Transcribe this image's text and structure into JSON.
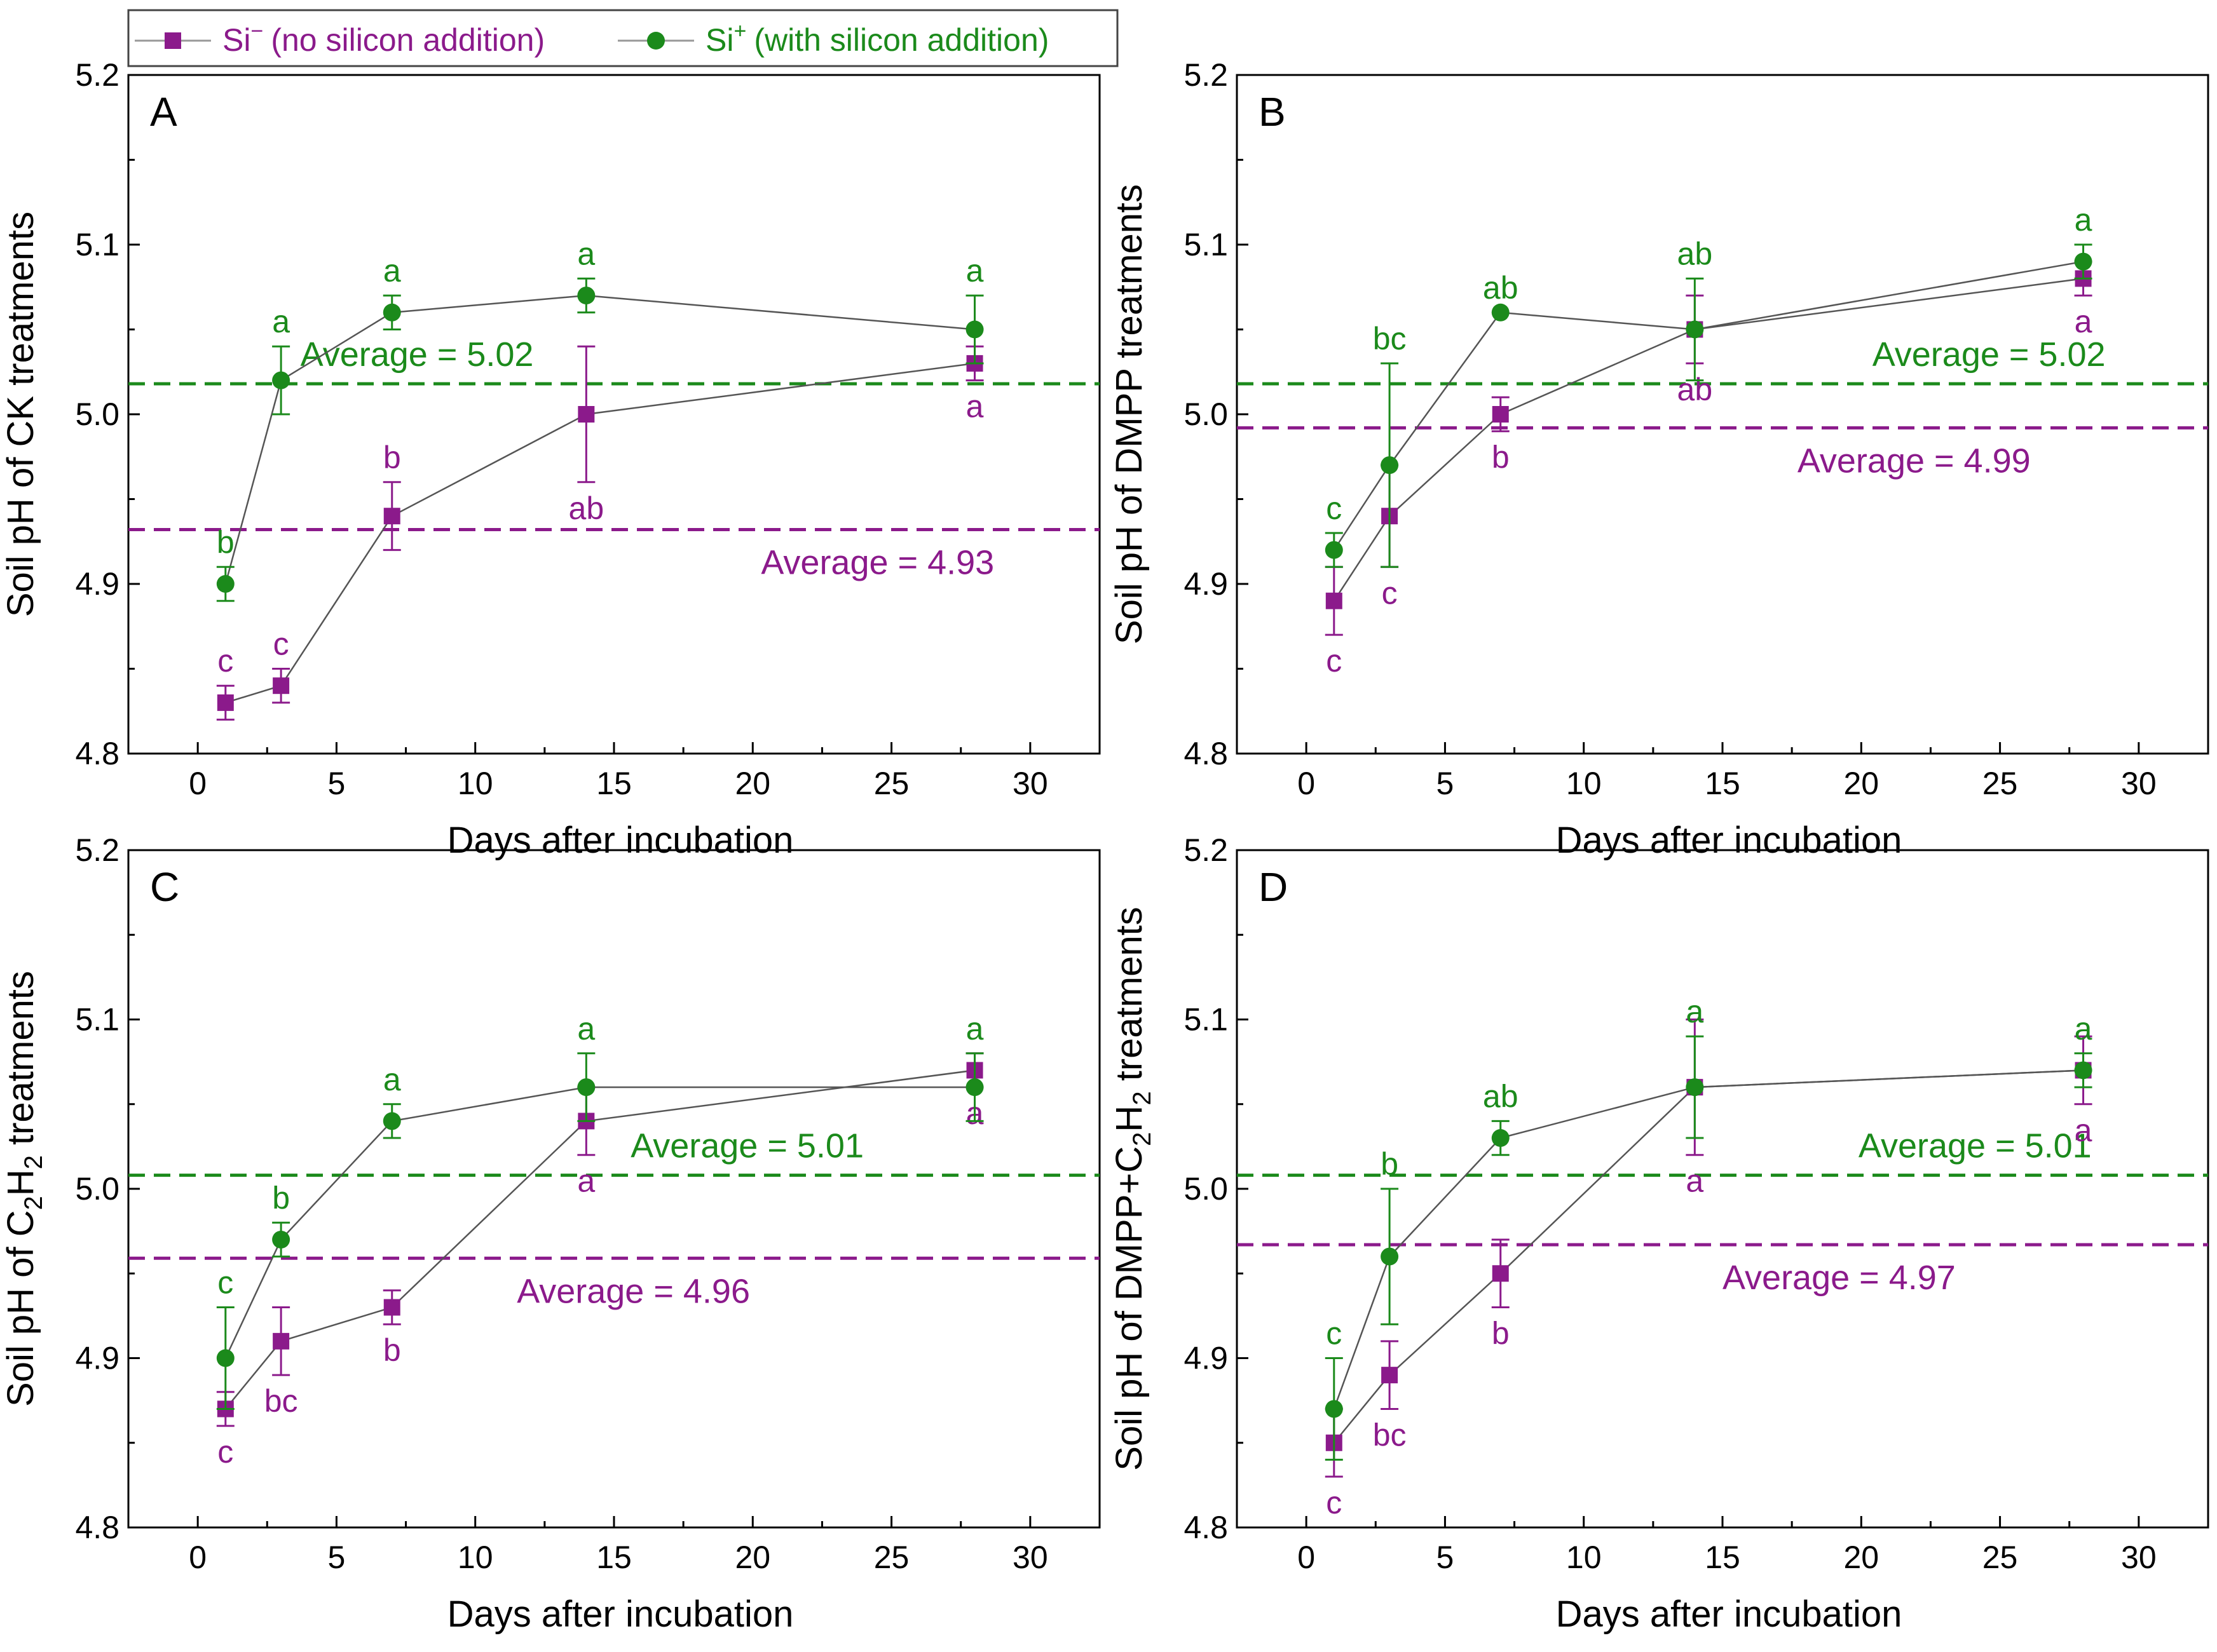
{
  "colors": {
    "si_minus": "#8B1A8B",
    "si_plus": "#1B8A1B",
    "axis": "#000000",
    "connector": "#555555"
  },
  "legend": {
    "si_minus": {
      "sym": "Si",
      "sup": "−",
      "desc": "(no silicon addition)"
    },
    "si_plus": {
      "sym": "Si",
      "sup": "+",
      "desc": "(with silicon addition)"
    }
  },
  "chart_data": [
    {
      "type": "line",
      "panel": "A",
      "ylabel": [
        {
          "t": "Soil pH of CK treatments"
        }
      ],
      "xlabel": "Days after incubation",
      "x": [
        1,
        3,
        7,
        14,
        28
      ],
      "xlim": [
        -2.5,
        32.5
      ],
      "ylim": [
        4.8,
        5.2
      ],
      "xticks": [
        0,
        5,
        10,
        15,
        20,
        25,
        30
      ],
      "yticks": [
        4.8,
        4.9,
        5.0,
        5.1,
        5.2
      ],
      "series": [
        {
          "name": "Si − (no silicon addition)",
          "key": "si_minus",
          "values": [
            4.83,
            4.84,
            4.94,
            5.0,
            5.03
          ],
          "errors": [
            0.01,
            0.01,
            0.02,
            0.04,
            0.01
          ],
          "letters": [
            "c",
            "c",
            "b",
            "ab",
            "a"
          ],
          "letter_pos": [
            "above",
            "above",
            "above",
            "below",
            "below"
          ],
          "average": 4.932,
          "average_label": "Average = 4.93"
        },
        {
          "name": "Si + (with silicon addition)",
          "key": "si_plus",
          "values": [
            4.9,
            5.02,
            5.06,
            5.07,
            5.05
          ],
          "errors": [
            0.01,
            0.02,
            0.01,
            0.01,
            0.02
          ],
          "letters": [
            "b",
            "a",
            "a",
            "a",
            "a"
          ],
          "letter_pos": [
            "above",
            "above",
            "above",
            "above",
            "above"
          ],
          "average": 5.018,
          "average_label": "Average = 5.02"
        }
      ]
    },
    {
      "type": "line",
      "panel": "B",
      "ylabel": [
        {
          "t": "Soil pH of DMPP treatments"
        }
      ],
      "xlabel": "Days after incubation",
      "x": [
        1,
        3,
        7,
        14,
        28
      ],
      "xlim": [
        -2.5,
        32.5
      ],
      "ylim": [
        4.8,
        5.2
      ],
      "xticks": [
        0,
        5,
        10,
        15,
        20,
        25,
        30
      ],
      "yticks": [
        4.8,
        4.9,
        5.0,
        5.1,
        5.2
      ],
      "series": [
        {
          "name": "Si − (no silicon addition)",
          "key": "si_minus",
          "values": [
            4.89,
            4.94,
            5.0,
            5.05,
            5.08
          ],
          "errors": [
            0.02,
            0.03,
            0.01,
            0.02,
            0.01
          ],
          "letters": [
            "c",
            "c",
            "b",
            "ab",
            "a"
          ],
          "letter_pos": [
            "below",
            "below",
            "below",
            "below",
            "below"
          ],
          "average": 4.992,
          "average_label": "Average = 4.99"
        },
        {
          "name": "Si + (with silicon addition)",
          "key": "si_plus",
          "values": [
            4.92,
            4.97,
            5.06,
            5.05,
            5.09
          ],
          "errors": [
            0.01,
            0.06,
            0.0,
            0.03,
            0.01
          ],
          "letters": [
            "c",
            "bc",
            "ab",
            "ab",
            "a"
          ],
          "letter_pos": [
            "above",
            "above",
            "above",
            "above",
            "above"
          ],
          "average": 5.018,
          "average_label": "Average = 5.02"
        }
      ]
    },
    {
      "type": "line",
      "panel": "C",
      "ylabel": [
        {
          "t": "Soil pH of C"
        },
        {
          "t": "2",
          "sub": true
        },
        {
          "t": "H"
        },
        {
          "t": "2",
          "sub": true
        },
        {
          "t": " treatments"
        }
      ],
      "xlabel": "Days after incubation",
      "x": [
        1,
        3,
        7,
        14,
        28
      ],
      "xlim": [
        -2.5,
        32.5
      ],
      "ylim": [
        4.8,
        5.2
      ],
      "xticks": [
        0,
        5,
        10,
        15,
        20,
        25,
        30
      ],
      "yticks": [
        4.8,
        4.9,
        5.0,
        5.1,
        5.2
      ],
      "series": [
        {
          "name": "Si − (no silicon addition)",
          "key": "si_minus",
          "values": [
            4.87,
            4.91,
            4.93,
            5.04,
            5.07
          ],
          "errors": [
            0.01,
            0.02,
            0.01,
            0.02,
            0.01
          ],
          "letters": [
            "c",
            "bc",
            "b",
            "a",
            "a"
          ],
          "letter_pos": [
            "below",
            "below",
            "below",
            "below",
            "below"
          ],
          "average": 4.959,
          "average_label": "Average = 4.96"
        },
        {
          "name": "Si + (with silicon addition)",
          "key": "si_plus",
          "values": [
            4.9,
            4.97,
            5.04,
            5.06,
            5.06
          ],
          "errors": [
            0.03,
            0.01,
            0.01,
            0.02,
            0.02
          ],
          "letters": [
            "c",
            "b",
            "a",
            "a",
            "a"
          ],
          "letter_pos": [
            "above",
            "above",
            "above",
            "above",
            "above"
          ],
          "average": 5.008,
          "average_label": "Average = 5.01"
        }
      ]
    },
    {
      "type": "line",
      "panel": "D",
      "ylabel": [
        {
          "t": "Soil pH of DMPP+C"
        },
        {
          "t": "2",
          "sub": true
        },
        {
          "t": "H"
        },
        {
          "t": "2",
          "sub": true
        },
        {
          "t": " treatments"
        }
      ],
      "xlabel": "Days after incubation",
      "x": [
        1,
        3,
        7,
        14,
        28
      ],
      "xlim": [
        -2.5,
        32.5
      ],
      "ylim": [
        4.8,
        5.2
      ],
      "xticks": [
        0,
        5,
        10,
        15,
        20,
        25,
        30
      ],
      "yticks": [
        4.8,
        4.9,
        5.0,
        5.1,
        5.2
      ],
      "series": [
        {
          "name": "Si − (no silicon addition)",
          "key": "si_minus",
          "values": [
            4.85,
            4.89,
            4.95,
            5.06,
            5.07
          ],
          "errors": [
            0.02,
            0.02,
            0.02,
            0.04,
            0.02
          ],
          "letters": [
            "c",
            "bc",
            "b",
            "a",
            "a"
          ],
          "letter_pos": [
            "below",
            "below",
            "below",
            "below",
            "below"
          ],
          "average": 4.967,
          "average_label": "Average = 4.97"
        },
        {
          "name": "Si + (with silicon addition)",
          "key": "si_plus",
          "values": [
            4.87,
            4.96,
            5.03,
            5.06,
            5.07
          ],
          "errors": [
            0.03,
            0.04,
            0.01,
            0.03,
            0.01
          ],
          "letters": [
            "c",
            "b",
            "ab",
            "a",
            "a"
          ],
          "letter_pos": [
            "above",
            "above",
            "above",
            "above",
            "above"
          ],
          "average": 5.008,
          "average_label": "Average = 5.01"
        }
      ]
    }
  ]
}
